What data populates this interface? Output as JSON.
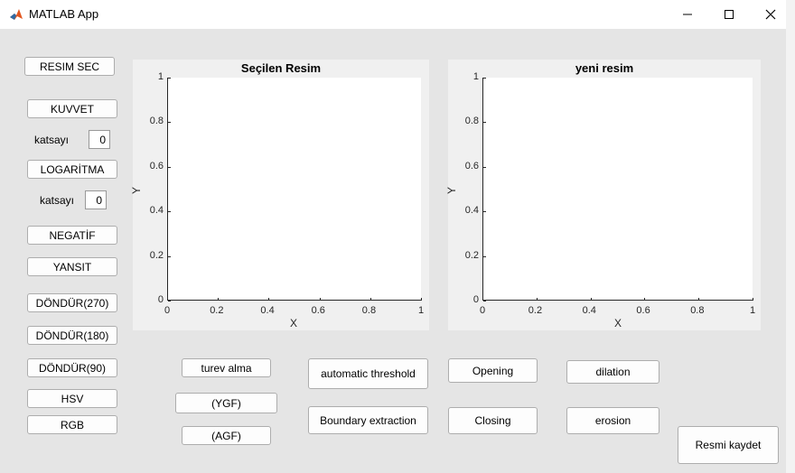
{
  "window": {
    "title": "MATLAB App"
  },
  "left_buttons": {
    "resim_sec": "RESIM SEC",
    "kuvvet": "KUVVET",
    "kuvvet_katsayi_label": "katsayı",
    "kuvvet_katsayi_value": "0",
    "logaritma": "LOGARİTMA",
    "log_katsayi_label": "katsayı",
    "log_katsayi_value": "0",
    "negatif": "NEGATİF",
    "yansit": "YANSIT",
    "dondur270": "DÖNDÜR(270)",
    "dondur180": "DÖNDÜR(180)",
    "dondur90": "DÖNDÜR(90)",
    "hsv": "HSV",
    "rgb": "RGB"
  },
  "axes": [
    {
      "title": "Seçilen Resim",
      "xlabel": "X",
      "ylabel": "Y",
      "xticks": [
        "0",
        "0.2",
        "0.4",
        "0.6",
        "0.8",
        "1"
      ],
      "yticks": [
        "0",
        "0.2",
        "0.4",
        "0.6",
        "0.8",
        "1"
      ],
      "xlim": [
        0,
        1
      ],
      "ylim": [
        0,
        1
      ]
    },
    {
      "title": "yeni resim",
      "xlabel": "X",
      "ylabel": "Y",
      "xticks": [
        "0",
        "0.2",
        "0.4",
        "0.6",
        "0.8",
        "1"
      ],
      "yticks": [
        "0",
        "0.2",
        "0.4",
        "0.6",
        "0.8",
        "1"
      ],
      "xlim": [
        0,
        1
      ],
      "ylim": [
        0,
        1
      ]
    }
  ],
  "bottom_buttons": {
    "turev_alma": "turev alma",
    "ygf": "(YGF)",
    "agf": "(AGF)",
    "automatic_threshold": "automatic threshold",
    "boundary_extraction": "Boundary extraction",
    "opening": "Opening",
    "closing": "Closing",
    "dilation": "dilation",
    "erosion": "erosion",
    "resmi_kaydet": "Resmi kaydet"
  }
}
